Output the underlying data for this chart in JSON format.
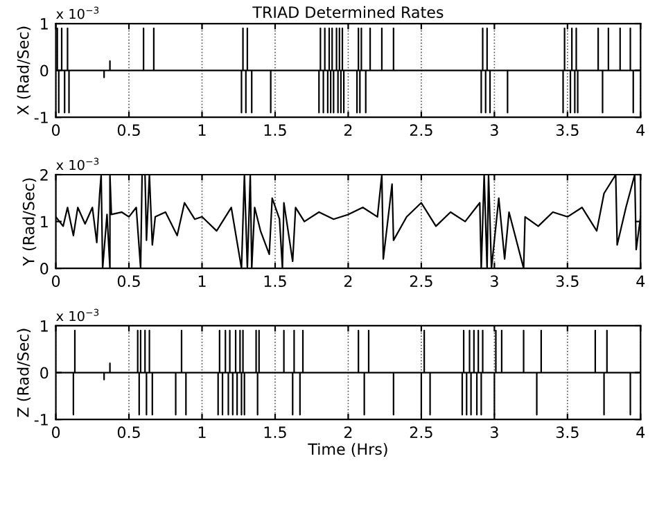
{
  "chart_data": [
    {
      "type": "line",
      "title": "TRIAD Determined Rates",
      "ylabel": "X (Rad/Sec)",
      "annotations": [
        "x 10$^{−3}$"
      ],
      "xlim": [
        0,
        4
      ],
      "ylim": [
        -1,
        1
      ],
      "xticks": [
        0,
        0.5,
        1,
        1.5,
        2,
        2.5,
        3,
        3.5,
        4
      ],
      "yticks": [
        -1,
        0,
        1
      ],
      "grid": "x",
      "series": [
        {
          "color": "#000000",
          "x": [
            0,
            0.01,
            0.01,
            0.01,
            0.02,
            0.02,
            0.02,
            0.04,
            0.04,
            0.04,
            0.06,
            0.06,
            0.06,
            0.08,
            0.08,
            0.08,
            0.09,
            0.09,
            0.09,
            0.33,
            0.33,
            0.33,
            0.37,
            0.37,
            0.37,
            0.6,
            0.6,
            0.6,
            0.67,
            0.67,
            0.67,
            1.27,
            1.27,
            1.27,
            1.28,
            1.28,
            1.28,
            1.3,
            1.3,
            1.3,
            1.31,
            1.31,
            1.31,
            1.34,
            1.34,
            1.34,
            1.47,
            1.47,
            1.47,
            1.8,
            1.8,
            1.8,
            1.81,
            1.81,
            1.81,
            1.83,
            1.83,
            1.83,
            1.84,
            1.84,
            1.84,
            1.86,
            1.86,
            1.86,
            1.87,
            1.87,
            1.87,
            1.88,
            1.88,
            1.88,
            1.89,
            1.89,
            1.89,
            1.9,
            1.9,
            1.9,
            1.92,
            1.92,
            1.92,
            1.93,
            1.93,
            1.93,
            1.94,
            1.94,
            1.94,
            1.95,
            1.95,
            1.95,
            1.96,
            1.96,
            1.96,
            1.97,
            1.97,
            1.97,
            2.06,
            2.06,
            2.06,
            2.07,
            2.07,
            2.07,
            2.08,
            2.08,
            2.08,
            2.09,
            2.09,
            2.09,
            2.12,
            2.12,
            2.12,
            2.15,
            2.15,
            2.15,
            2.23,
            2.23,
            2.23,
            2.31,
            2.31,
            2.31,
            2.91,
            2.91,
            2.91,
            2.92,
            2.92,
            2.92,
            2.94,
            2.94,
            2.94,
            2.95,
            2.95,
            2.95,
            2.97,
            2.97,
            2.97,
            3.09,
            3.09,
            3.09,
            3.47,
            3.47,
            3.47,
            3.48,
            3.48,
            3.48,
            3.52,
            3.52,
            3.52,
            3.53,
            3.53,
            3.53,
            3.55,
            3.55,
            3.55,
            3.56,
            3.56,
            3.56,
            3.57,
            3.57,
            3.57,
            3.71,
            3.71,
            3.71,
            3.74,
            3.74,
            3.74,
            3.78,
            3.78,
            3.78,
            3.86,
            3.86,
            3.86,
            3.93,
            3.93,
            3.93,
            3.95,
            3.95,
            3.95,
            4
          ],
          "values": [
            0,
            0,
            0.9,
            0,
            0,
            -0.9,
            0,
            0,
            0.9,
            0,
            0,
            -0.9,
            0,
            0,
            0.9,
            0,
            0,
            -0.9,
            0,
            0,
            -0.15,
            0,
            0,
            0.2,
            0,
            0,
            0.9,
            0,
            0,
            0.9,
            0,
            0,
            -0.9,
            0,
            0,
            0.9,
            0,
            0,
            -0.9,
            0,
            0,
            0.9,
            0,
            0,
            -0.9,
            0,
            0,
            -0.9,
            0,
            0,
            -0.9,
            0,
            0,
            0.9,
            0,
            0,
            -0.9,
            0,
            0,
            0.9,
            0,
            0,
            -0.9,
            0,
            0,
            0.9,
            0,
            0,
            -0.9,
            0,
            0,
            0.9,
            0,
            0,
            -0.9,
            0,
            0,
            0.9,
            0,
            0,
            -0.9,
            0,
            0,
            0.9,
            0,
            0,
            -0.9,
            0,
            0,
            0.9,
            0,
            0,
            -0.9,
            0,
            0,
            -0.9,
            0,
            0,
            0.9,
            0,
            0,
            -0.9,
            0,
            0,
            0.9,
            0,
            0,
            -0.9,
            0,
            0,
            0.9,
            0,
            0,
            0.9,
            0,
            0,
            0.9,
            0,
            0,
            -0.9,
            0,
            0,
            0.9,
            0,
            0,
            -0.9,
            0,
            0,
            0.9,
            0,
            0,
            -0.9,
            0,
            0,
            -0.9,
            0,
            0,
            -0.9,
            0,
            0,
            0.9,
            0,
            0,
            -0.9,
            0,
            0,
            0.9,
            0,
            0,
            -0.9,
            0,
            0,
            0.9,
            0,
            0,
            -0.9,
            0,
            0,
            0.9,
            0,
            0,
            -0.9,
            0,
            0,
            0.9,
            0,
            0,
            0.9,
            0,
            0,
            0.9,
            0,
            0,
            -0.9,
            0,
            0
          ]
        }
      ]
    },
    {
      "type": "line",
      "ylabel": "Y (Rad/Sec)",
      "annotations": [
        "x 10$^{−3}$"
      ],
      "xlim": [
        0,
        4
      ],
      "ylim": [
        0,
        2
      ],
      "xticks": [
        0,
        0.5,
        1,
        1.5,
        2,
        2.5,
        3,
        3.5,
        4
      ],
      "yticks": [
        0,
        1,
        2
      ],
      "grid": "x",
      "series": [
        {
          "color": "#000000",
          "x": [
            0,
            0.05,
            0.08,
            0.12,
            0.15,
            0.2,
            0.25,
            0.28,
            0.3,
            0.31,
            0.32,
            0.35,
            0.37,
            0.37,
            0.38,
            0.45,
            0.5,
            0.55,
            0.58,
            0.59,
            0.61,
            0.62,
            0.64,
            0.66,
            0.68,
            0.75,
            0.83,
            0.88,
            0.95,
            1.0,
            1.1,
            1.2,
            1.27,
            1.29,
            1.31,
            1.33,
            1.34,
            1.36,
            1.4,
            1.46,
            1.48,
            1.53,
            1.55,
            1.56,
            1.62,
            1.64,
            1.7,
            1.8,
            1.9,
            2.0,
            2.1,
            2.2,
            2.23,
            2.24,
            2.3,
            2.31,
            2.4,
            2.5,
            2.6,
            2.7,
            2.8,
            2.9,
            2.91,
            2.93,
            2.95,
            2.96,
            2.98,
            3.03,
            3.07,
            3.1,
            3.2,
            3.21,
            3.3,
            3.4,
            3.5,
            3.6,
            3.7,
            3.75,
            3.83,
            3.84,
            3.9,
            3.96,
            3.97,
            4.0
          ],
          "values": [
            1.1,
            0.9,
            1.3,
            0.7,
            1.3,
            0.95,
            1.3,
            0.55,
            1.6,
            2,
            0,
            1.15,
            0,
            2,
            1.15,
            1.2,
            1.1,
            1.3,
            0,
            2,
            2,
            0.6,
            2,
            0.5,
            1.1,
            1.2,
            0.7,
            1.4,
            1.05,
            1.1,
            0.8,
            1.3,
            0,
            2,
            0,
            2,
            0,
            1.3,
            0.8,
            0.3,
            1.5,
            1.05,
            0,
            1.4,
            0.15,
            1.3,
            1.0,
            1.2,
            1.05,
            1.15,
            1.3,
            1.1,
            2,
            0.2,
            1.8,
            0.6,
            1.1,
            1.4,
            0.9,
            1.2,
            1.0,
            1.4,
            0,
            2,
            0,
            2,
            0,
            1.5,
            0.2,
            1.2,
            0,
            1.1,
            0.9,
            1.2,
            1.1,
            1.3,
            0.8,
            1.6,
            2,
            0.5,
            1.3,
            2,
            0.4,
            1.1
          ]
        }
      ]
    },
    {
      "type": "line",
      "ylabel": "Z (Rad/Sec)",
      "xlabel": "Time (Hrs)",
      "annotations": [
        "x 10$^{−3}$"
      ],
      "xlim": [
        0,
        4
      ],
      "ylim": [
        -1,
        1
      ],
      "xticks": [
        0,
        0.5,
        1,
        1.5,
        2,
        2.5,
        3,
        3.5,
        4
      ],
      "yticks": [
        -1,
        0,
        1
      ],
      "grid": "x",
      "series": [
        {
          "color": "#000000",
          "x": [
            0,
            0.12,
            0.12,
            0.12,
            0.13,
            0.13,
            0.13,
            0.33,
            0.33,
            0.33,
            0.37,
            0.37,
            0.37,
            0.56,
            0.56,
            0.56,
            0.57,
            0.57,
            0.57,
            0.58,
            0.58,
            0.58,
            0.61,
            0.61,
            0.61,
            0.62,
            0.62,
            0.62,
            0.64,
            0.64,
            0.64,
            0.66,
            0.66,
            0.66,
            0.82,
            0.82,
            0.82,
            0.86,
            0.86,
            0.86,
            0.89,
            0.89,
            0.89,
            1.11,
            1.11,
            1.11,
            1.12,
            1.12,
            1.12,
            1.14,
            1.14,
            1.14,
            1.16,
            1.16,
            1.16,
            1.18,
            1.18,
            1.18,
            1.19,
            1.19,
            1.19,
            1.21,
            1.21,
            1.21,
            1.23,
            1.23,
            1.23,
            1.24,
            1.24,
            1.24,
            1.26,
            1.26,
            1.26,
            1.27,
            1.27,
            1.27,
            1.28,
            1.28,
            1.28,
            1.29,
            1.29,
            1.29,
            1.37,
            1.37,
            1.37,
            1.38,
            1.38,
            1.38,
            1.39,
            1.39,
            1.39,
            1.56,
            1.56,
            1.56,
            1.62,
            1.62,
            1.62,
            1.63,
            1.63,
            1.63,
            1.67,
            1.67,
            1.67,
            1.69,
            1.69,
            1.69,
            2.07,
            2.07,
            2.07,
            2.11,
            2.11,
            2.11,
            2.14,
            2.14,
            2.14,
            2.31,
            2.31,
            2.31,
            2.5,
            2.5,
            2.5,
            2.52,
            2.52,
            2.52,
            2.56,
            2.56,
            2.56,
            2.78,
            2.78,
            2.78,
            2.79,
            2.79,
            2.79,
            2.81,
            2.81,
            2.81,
            2.83,
            2.83,
            2.83,
            2.84,
            2.84,
            2.84,
            2.86,
            2.86,
            2.86,
            2.88,
            2.88,
            2.88,
            2.89,
            2.89,
            2.89,
            2.91,
            2.91,
            2.91,
            2.92,
            2.92,
            2.92,
            3.0,
            3.0,
            3.0,
            3.01,
            3.01,
            3.01,
            3.05,
            3.05,
            3.05,
            3.2,
            3.2,
            3.2,
            3.29,
            3.29,
            3.29,
            3.32,
            3.32,
            3.32,
            3.69,
            3.69,
            3.69,
            3.75,
            3.75,
            3.75,
            3.77,
            3.77,
            3.77,
            3.93,
            3.93,
            3.93,
            4
          ],
          "values": [
            0,
            0,
            -0.9,
            0,
            0,
            0.9,
            0,
            0,
            -0.15,
            0,
            0,
            0.2,
            0,
            0,
            0.9,
            0,
            0,
            -0.9,
            0,
            0,
            0.9,
            0,
            0,
            0.9,
            0,
            0,
            -0.9,
            0,
            0,
            0.9,
            0,
            0,
            -0.9,
            0,
            0,
            -0.9,
            0,
            0,
            0.9,
            0,
            0,
            -0.9,
            0,
            0,
            -0.9,
            0,
            0,
            0.9,
            0,
            0,
            -0.9,
            0,
            0,
            0.9,
            0,
            0,
            -0.9,
            0,
            0,
            0.9,
            0,
            0,
            -0.9,
            0,
            0,
            0.9,
            0,
            0,
            -0.9,
            0,
            0,
            0.9,
            0,
            0,
            -0.9,
            0,
            0,
            0.9,
            0,
            0,
            -0.9,
            0,
            0,
            0.9,
            0,
            0,
            -0.9,
            0,
            0,
            0.9,
            0,
            0,
            0.9,
            0,
            0,
            -0.9,
            0,
            0,
            0.9,
            0,
            0,
            -0.9,
            0,
            0,
            0.9,
            0,
            0,
            0.9,
            0,
            0,
            -0.9,
            0,
            0,
            0.9,
            0,
            0,
            -0.9,
            0,
            0,
            -0.9,
            0,
            0,
            0.9,
            0,
            0,
            -0.9,
            0,
            0,
            -0.9,
            0,
            0,
            0.9,
            0,
            0,
            -0.9,
            0,
            0,
            0.9,
            0,
            0,
            -0.9,
            0,
            0,
            0.9,
            0,
            0,
            -0.9,
            0,
            0,
            0.9,
            0,
            0,
            -0.9,
            0,
            0,
            0.9,
            0,
            0,
            -0.9,
            0,
            0,
            0.9,
            0,
            0,
            0.9,
            0,
            0,
            0.9,
            0,
            0,
            -0.9,
            0,
            0,
            0.9,
            0,
            0,
            0.9,
            0,
            0,
            -0.9,
            0,
            0,
            0.9,
            0,
            0,
            -0.9,
            0,
            0
          ]
        }
      ]
    }
  ]
}
